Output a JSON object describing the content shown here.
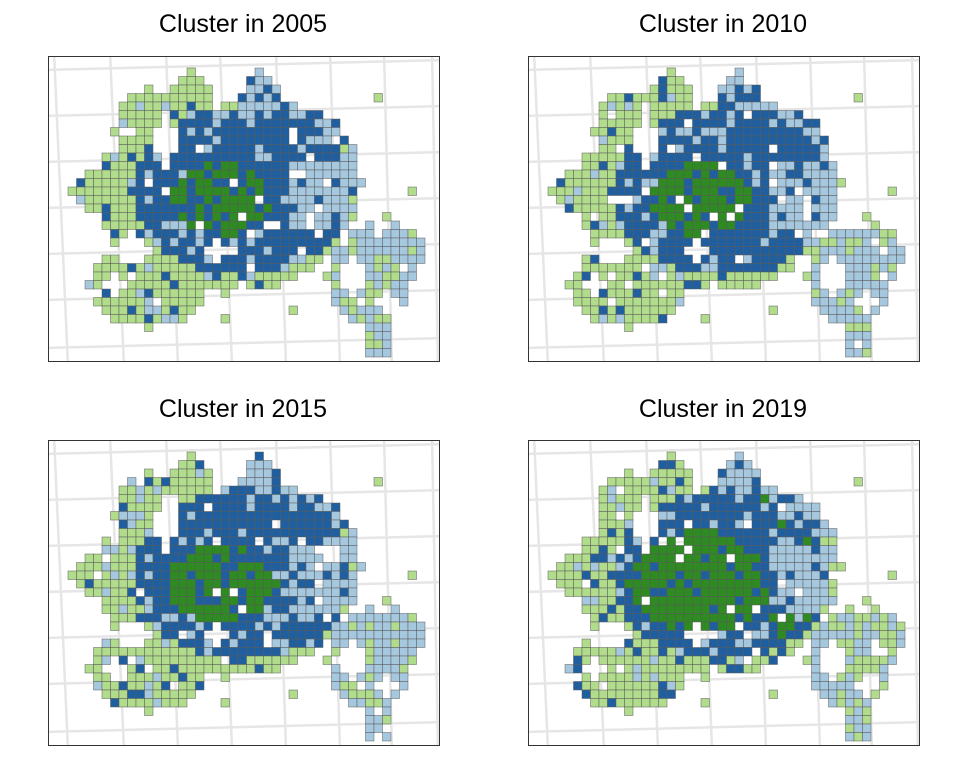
{
  "figure": {
    "panels": [
      {
        "id": "p2005",
        "title": "Cluster in 2005",
        "year": 2005
      },
      {
        "id": "p2010",
        "title": "Cluster in 2010",
        "year": 2010
      },
      {
        "id": "p2015",
        "title": "Cluster in 2015",
        "year": 2015
      },
      {
        "id": "p2019",
        "title": "Cluster in 2019",
        "year": 2019
      }
    ],
    "colors": {
      "light_blue": "#a6c8df",
      "dark_blue": "#1f5fa0",
      "light_green": "#b0dc8c",
      "dark_green": "#2e8b22",
      "graticule": "#e6e6e6",
      "cell_border": "#5a5a5a",
      "frame": "#333333"
    }
  }
}
